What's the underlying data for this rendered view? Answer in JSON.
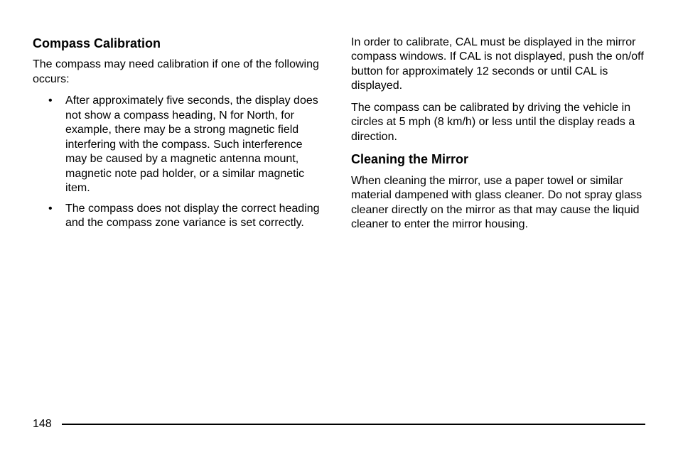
{
  "left": {
    "heading1": "Compass Calibration",
    "intro": "The compass may need calibration if one of the following occurs:",
    "bullets": [
      "After approximately five seconds, the display does not show a compass heading, N for North, for example, there may be a strong magnetic field interfering with the compass. Such interference may be caused by a magnetic antenna mount, magnetic note pad holder, or a similar magnetic item.",
      "The compass does not display the correct heading and the compass zone variance is set correctly."
    ]
  },
  "right": {
    "para1": "In order to calibrate, CAL must be displayed in the mirror compass windows. If CAL is not displayed, push the on/off button for approximately 12 seconds or until CAL is displayed.",
    "para2": "The compass can be calibrated by driving the vehicle in circles at 5 mph (8 km/h) or less until the display reads a direction.",
    "heading2": "Cleaning the Mirror",
    "para3": "When cleaning the mirror, use a paper towel or similar material dampened with glass cleaner. Do not spray glass cleaner directly on the mirror as that may cause the liquid cleaner to enter the mirror housing."
  },
  "page_number": "148"
}
